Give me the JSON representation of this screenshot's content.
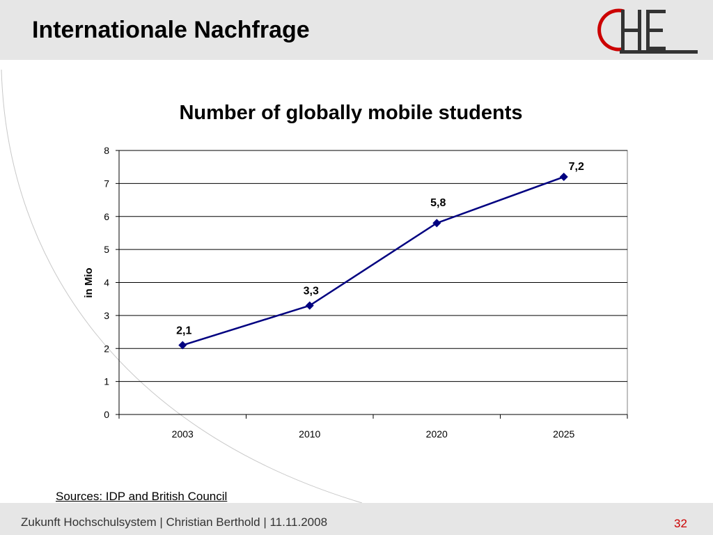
{
  "slide": {
    "title": "Internationale Nachfrage",
    "page_number": "32"
  },
  "footer": {
    "text": "Zukunft Hochschulsystem | Christian Berthold | 11.11.2008"
  },
  "source": {
    "text": "Sources: IDP and British Council"
  },
  "logo": {
    "name": "che-logo",
    "text": "CHE",
    "accent_color": "#cc0000",
    "text_color": "#333333"
  },
  "colors": {
    "line": "#000080",
    "marker": "#000080",
    "grid": "#000000",
    "page_number": "#cc0000"
  },
  "chart_data": {
    "type": "line",
    "title": "Number of globally mobile students",
    "xlabel": "",
    "ylabel": "in Mio",
    "categories": [
      "2003",
      "2010",
      "2020",
      "2025"
    ],
    "values": [
      2.1,
      3.3,
      5.8,
      7.2
    ],
    "data_labels": [
      "2,1",
      "3,3",
      "5,8",
      "7,2"
    ],
    "ylim": [
      0,
      8
    ],
    "yticks": [
      "0",
      "1",
      "2",
      "3",
      "4",
      "5",
      "6",
      "7",
      "8"
    ],
    "marker": "diamond",
    "grid": "horizontal",
    "legend": "none"
  }
}
